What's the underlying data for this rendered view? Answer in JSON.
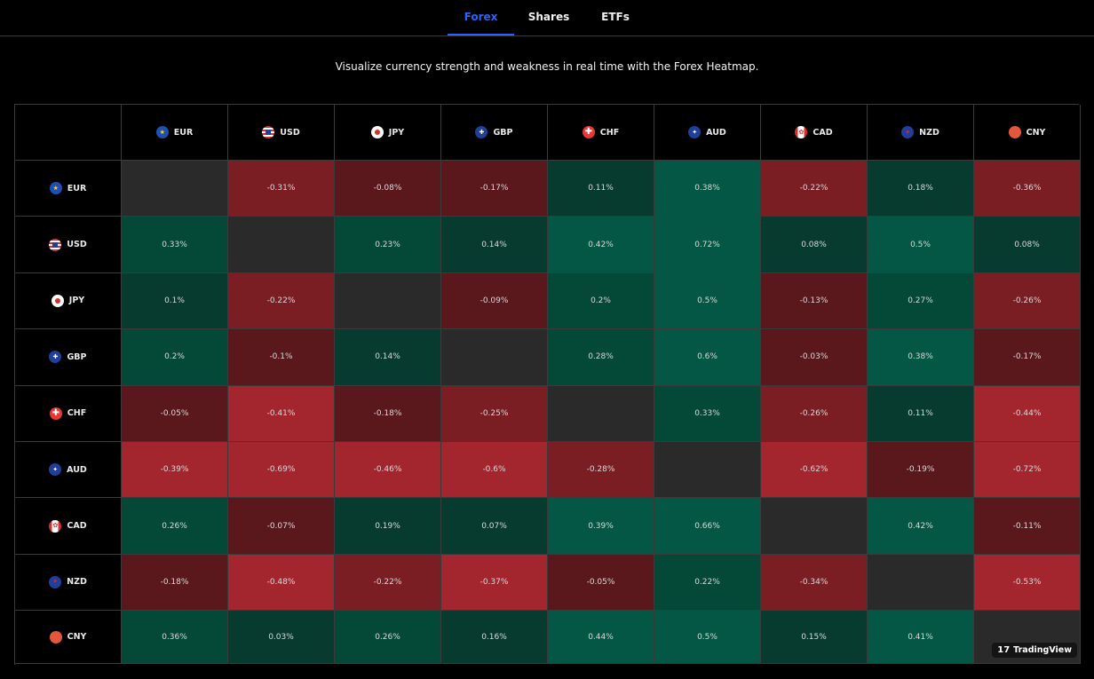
{
  "tabs": [
    {
      "label": "Forex",
      "active": true
    },
    {
      "label": "Shares",
      "active": false
    },
    {
      "label": "ETFs",
      "active": false
    }
  ],
  "subtitle": "Visualize currency strength and weakness in real time with the Forex Heatmap.",
  "currencies": [
    "EUR",
    "USD",
    "JPY",
    "GBP",
    "CHF",
    "AUD",
    "CAD",
    "NZD",
    "CNY"
  ],
  "rows": [
    {
      "label": "EUR",
      "cells": [
        "",
        "-0.31%",
        "-0.08%",
        "-0.17%",
        "0.11%",
        "0.38%",
        "-0.22%",
        "0.18%",
        "-0.36%"
      ]
    },
    {
      "label": "USD",
      "cells": [
        "0.33%",
        "",
        "0.23%",
        "0.14%",
        "0.42%",
        "0.72%",
        "0.08%",
        "0.5%",
        "0.08%"
      ]
    },
    {
      "label": "JPY",
      "cells": [
        "0.1%",
        "-0.22%",
        "",
        "-0.09%",
        "0.2%",
        "0.5%",
        "-0.13%",
        "0.27%",
        "-0.26%"
      ]
    },
    {
      "label": "GBP",
      "cells": [
        "0.2%",
        "-0.1%",
        "0.14%",
        "",
        "0.28%",
        "0.6%",
        "-0.03%",
        "0.38%",
        "-0.17%"
      ]
    },
    {
      "label": "CHF",
      "cells": [
        "-0.05%",
        "-0.41%",
        "-0.18%",
        "-0.25%",
        "",
        "0.33%",
        "-0.26%",
        "0.11%",
        "-0.44%"
      ]
    },
    {
      "label": "AUD",
      "cells": [
        "-0.39%",
        "-0.69%",
        "-0.46%",
        "-0.6%",
        "-0.28%",
        "",
        "-0.62%",
        "-0.19%",
        "-0.72%"
      ]
    },
    {
      "label": "CAD",
      "cells": [
        "0.26%",
        "-0.07%",
        "0.19%",
        "0.07%",
        "0.39%",
        "0.66%",
        "",
        "0.42%",
        "-0.11%"
      ]
    },
    {
      "label": "NZD",
      "cells": [
        "-0.18%",
        "-0.48%",
        "-0.22%",
        "-0.37%",
        "-0.05%",
        "0.22%",
        "-0.34%",
        "",
        "-0.53%"
      ]
    },
    {
      "label": "CNY",
      "cells": [
        "0.36%",
        "0.03%",
        "0.26%",
        "0.16%",
        "0.44%",
        "0.5%",
        "0.15%",
        "0.41%",
        ""
      ]
    }
  ],
  "colors": {
    "accent": "#2962ff",
    "positive": "#045744",
    "negative": "#a3262f",
    "empty": "#2a2a2a"
  },
  "branding": {
    "logo_text": "TradingView"
  }
}
